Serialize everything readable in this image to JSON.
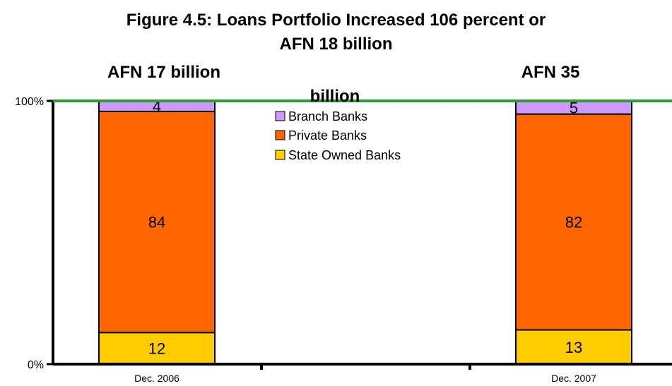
{
  "chart_data": {
    "type": "bar",
    "stacked": true,
    "title_lines": [
      "Figure 4.5: Loans Portfolio Increased 106 percent or",
      "AFN 18 billion"
    ],
    "categories": [
      "Dec. 2006",
      "Dec. 2007"
    ],
    "series": [
      {
        "name": "State Owned Banks",
        "values": [
          12,
          13
        ],
        "color": "#ffcc00"
      },
      {
        "name": "Private Banks",
        "values": [
          84,
          82
        ],
        "color": "#ff6600"
      },
      {
        "name": "Branch Banks",
        "values": [
          4,
          5
        ],
        "color": "#cc99ff"
      }
    ],
    "legend_order": [
      "Branch Banks",
      "Private Banks",
      "State Owned Banks"
    ],
    "annotations": [
      "AFN 17 billion",
      "AFN 35",
      "billion"
    ],
    "yticks": [
      "100%",
      "0%"
    ],
    "ylim": [
      0,
      100
    ],
    "reference_line_color": "#339933",
    "legend_position": "top-center"
  }
}
